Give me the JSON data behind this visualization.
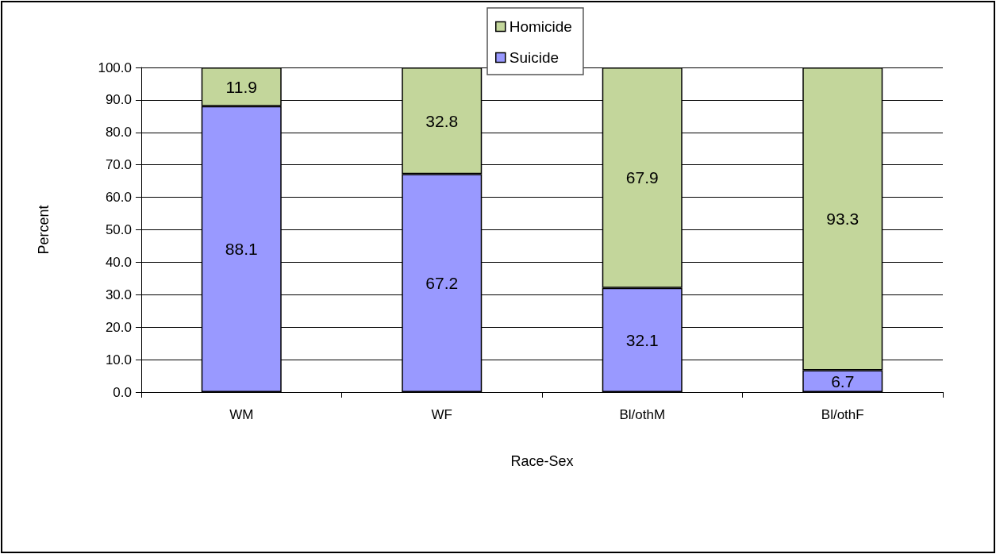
{
  "chart_data": {
    "type": "bar",
    "stacked": true,
    "data_labels": true,
    "grid": "y",
    "legend": "top",
    "xlabel": "Race-Sex",
    "ylabel": "Percent",
    "categories": [
      "WM",
      "WF",
      "Bl/othM",
      "Bl/othF"
    ],
    "series": [
      {
        "name": "Suicide",
        "color": "#9999ff",
        "values": [
          88.1,
          67.2,
          32.1,
          6.7
        ]
      },
      {
        "name": "Homicide",
        "color": "#c3d69b",
        "values": [
          11.9,
          32.8,
          67.9,
          93.3
        ]
      }
    ],
    "ylim": [
      0,
      100
    ],
    "yticks": [
      {
        "value": 0,
        "label": "0.0"
      },
      {
        "value": 10,
        "label": "10.0"
      },
      {
        "value": 20,
        "label": "20.0"
      },
      {
        "value": 30,
        "label": "30.0"
      },
      {
        "value": 40,
        "label": "40.0"
      },
      {
        "value": 50,
        "label": "50.0"
      },
      {
        "value": 60,
        "label": "60.0"
      },
      {
        "value": 70,
        "label": "70.0"
      },
      {
        "value": 80,
        "label": "80.0"
      },
      {
        "value": 90,
        "label": "90.0"
      },
      {
        "value": 100,
        "label": "100.0"
      }
    ]
  }
}
